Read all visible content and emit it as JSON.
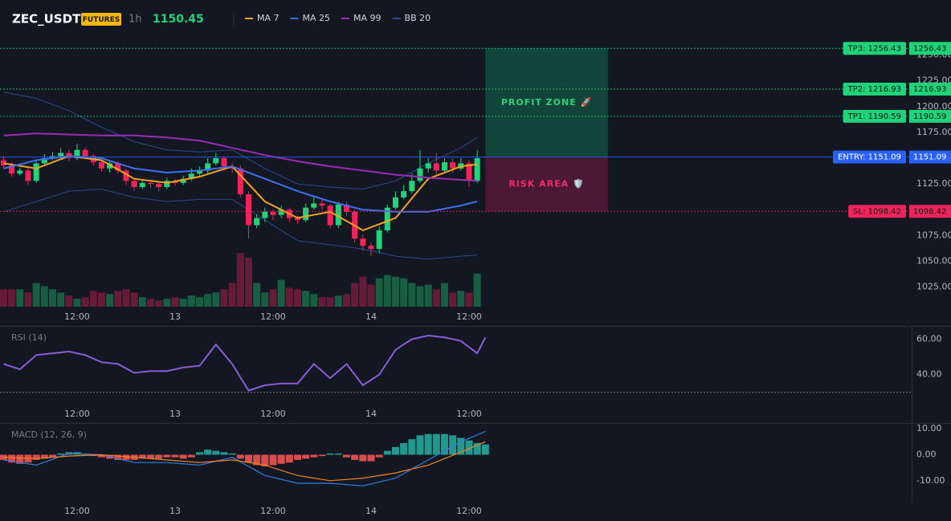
{
  "header": {
    "symbol": "ZEC_USDT",
    "badge": "FUTURES",
    "interval": "1h",
    "price": 1150.45
  },
  "chart_data": [
    {
      "type": "candlestick",
      "x": [
        0,
        1,
        2,
        3,
        4,
        5,
        6,
        7,
        8,
        9,
        10,
        11,
        12,
        13,
        14,
        15,
        16,
        17,
        18,
        19,
        20,
        21,
        22,
        23,
        24,
        25,
        26,
        27,
        28,
        29,
        30,
        31,
        32,
        33,
        34,
        35,
        36,
        37,
        38,
        39,
        40,
        41,
        42,
        43,
        44,
        45,
        46,
        47,
        48,
        49,
        50,
        51,
        52,
        53,
        54,
        55,
        56,
        57,
        58
      ],
      "open": [
        1148,
        1143,
        1135,
        1138,
        1128,
        1145,
        1150,
        1152,
        1155,
        1150,
        1158,
        1152,
        1146,
        1140,
        1145,
        1138,
        1128,
        1122,
        1126,
        1125,
        1122,
        1128,
        1126,
        1130,
        1135,
        1138,
        1145,
        1150,
        1142,
        1140,
        1115,
        1085,
        1092,
        1098,
        1095,
        1100,
        1092,
        1090,
        1102,
        1106,
        1104,
        1085,
        1105,
        1098,
        1072,
        1065,
        1062,
        1080,
        1102,
        1112,
        1118,
        1128,
        1140,
        1145,
        1138,
        1146,
        1140,
        1145,
        1128
      ],
      "high": [
        1152,
        1146,
        1141,
        1140,
        1148,
        1154,
        1156,
        1160,
        1158,
        1164,
        1160,
        1154,
        1148,
        1148,
        1147,
        1140,
        1130,
        1129,
        1129,
        1127,
        1131,
        1130,
        1133,
        1140,
        1142,
        1150,
        1155,
        1152,
        1145,
        1143,
        1118,
        1096,
        1102,
        1100,
        1104,
        1102,
        1094,
        1106,
        1112,
        1110,
        1106,
        1108,
        1108,
        1100,
        1076,
        1068,
        1084,
        1105,
        1118,
        1124,
        1135,
        1158,
        1150,
        1155,
        1150,
        1150,
        1150,
        1148,
        1158
      ],
      "low": [
        1140,
        1132,
        1133,
        1124,
        1126,
        1143,
        1148,
        1150,
        1147,
        1148,
        1149,
        1143,
        1137,
        1136,
        1135,
        1124,
        1118,
        1120,
        1121,
        1118,
        1120,
        1123,
        1124,
        1128,
        1133,
        1135,
        1143,
        1138,
        1136,
        1112,
        1072,
        1082,
        1088,
        1090,
        1092,
        1088,
        1086,
        1088,
        1100,
        1100,
        1082,
        1082,
        1094,
        1068,
        1060,
        1055,
        1058,
        1078,
        1100,
        1110,
        1116,
        1126,
        1136,
        1134,
        1136,
        1136,
        1138,
        1122,
        1126
      ],
      "close": [
        1143,
        1135,
        1138,
        1128,
        1145,
        1150,
        1152,
        1155,
        1150,
        1158,
        1152,
        1146,
        1140,
        1145,
        1138,
        1128,
        1122,
        1126,
        1125,
        1122,
        1128,
        1126,
        1130,
        1135,
        1138,
        1145,
        1150,
        1142,
        1140,
        1115,
        1085,
        1092,
        1098,
        1095,
        1100,
        1092,
        1090,
        1102,
        1106,
        1104,
        1085,
        1105,
        1098,
        1072,
        1065,
        1062,
        1080,
        1102,
        1112,
        1118,
        1128,
        1140,
        1145,
        1138,
        1146,
        1140,
        1145,
        1128,
        1150
      ],
      "volume": [
        22,
        22,
        22,
        18,
        30,
        26,
        22,
        18,
        14,
        10,
        12,
        20,
        18,
        16,
        20,
        22,
        18,
        12,
        10,
        8,
        10,
        12,
        10,
        14,
        12,
        16,
        18,
        22,
        30,
        68,
        62,
        30,
        18,
        22,
        34,
        24,
        22,
        20,
        16,
        12,
        12,
        14,
        16,
        30,
        38,
        28,
        36,
        40,
        38,
        36,
        30,
        26,
        28,
        22,
        30,
        18,
        20,
        18,
        42
      ],
      "up_color": "#22d37a",
      "down_color": "#f0245a",
      "series": [
        {
          "name": "MA 7",
          "color": "#f7a21b",
          "x": [
            0,
            4,
            8,
            12,
            16,
            20,
            24,
            28,
            32,
            36,
            40,
            44,
            48,
            52,
            56,
            58
          ],
          "values": [
            1145,
            1140,
            1152,
            1148,
            1130,
            1126,
            1132,
            1142,
            1108,
            1092,
            1098,
            1080,
            1092,
            1130,
            1142,
            1144
          ]
        },
        {
          "name": "MA 25",
          "color": "#3d6ff0",
          "x": [
            0,
            4,
            8,
            12,
            16,
            20,
            24,
            28,
            32,
            36,
            40,
            44,
            48,
            52,
            56,
            58
          ],
          "values": [
            1140,
            1148,
            1152,
            1150,
            1140,
            1136,
            1138,
            1142,
            1130,
            1118,
            1108,
            1100,
            1098,
            1098,
            1104,
            1108
          ]
        },
        {
          "name": "MA 99",
          "color": "#9c2bb5",
          "x": [
            0,
            4,
            8,
            12,
            16,
            20,
            24,
            28,
            32,
            36,
            40,
            44,
            48,
            52,
            56,
            58
          ],
          "values": [
            1172,
            1174,
            1173,
            1172,
            1172,
            1170,
            1167,
            1160,
            1153,
            1147,
            1142,
            1138,
            1134,
            1131,
            1129,
            1128
          ]
        },
        {
          "name": "BB 20",
          "color": "#2a4a8f",
          "x": [
            0,
            4,
            8,
            12,
            16,
            20,
            24,
            28,
            32,
            36,
            40,
            44,
            48,
            52,
            56,
            58
          ],
          "values": [
            1214,
            1208,
            1196,
            1180,
            1166,
            1158,
            1156,
            1158,
            1140,
            1125,
            1122,
            1120,
            1128,
            1145,
            1160,
            1170
          ],
          "lower": [
            1098,
            1108,
            1118,
            1120,
            1112,
            1108,
            1110,
            1110,
            1090,
            1070,
            1066,
            1062,
            1055,
            1052,
            1055,
            1056
          ]
        }
      ],
      "xlim": [
        -0.44,
        111.2
      ],
      "xticks": [
        {
          "value": 9,
          "label": "12:00"
        },
        {
          "value": 21,
          "label": "13"
        },
        {
          "value": 33,
          "label": "12:00"
        },
        {
          "value": 45,
          "label": "14"
        },
        {
          "value": 57,
          "label": "12:00"
        }
      ],
      "ylim": [
        1006,
        1266
      ],
      "yticks": [
        {
          "value": 1025,
          "label": "1025.00"
        },
        {
          "value": 1050,
          "label": "1050.00"
        },
        {
          "value": 1075,
          "label": "1075.00"
        },
        {
          "value": 1100,
          "label": "1100.00"
        },
        {
          "value": 1125,
          "label": "1125.00"
        },
        {
          "value": 1150,
          "label": "1150.00"
        },
        {
          "value": 1175,
          "label": "1175.00"
        },
        {
          "value": 1200,
          "label": "1200.00"
        },
        {
          "value": 1225,
          "label": "1225.00"
        },
        {
          "value": 1250,
          "label": "1250.00"
        }
      ],
      "levels": [
        {
          "label": "TP3: 1256.43",
          "value": 1256.43,
          "value_label": "1256.43",
          "color": "#1fd37a",
          "style": "dotted"
        },
        {
          "label": "TP2: 1216.93",
          "value": 1216.93,
          "value_label": "1216.93",
          "color": "#1fd37a",
          "style": "dotted"
        },
        {
          "label": "TP1: 1190.59",
          "value": 1190.59,
          "value_label": "1190.59",
          "color": "#1fd37a",
          "style": "dotted"
        },
        {
          "label": "ENTRY: 1151.09",
          "value": 1151.09,
          "value_label": "1151.09",
          "color": "#2962ff",
          "style": "solid"
        },
        {
          "label": "SL: 1098.42",
          "value": 1098.42,
          "value_label": "1098.42",
          "color": "#f0245a",
          "style": "dotted"
        }
      ],
      "zones": [
        {
          "label": "PROFIT ZONE 🚀",
          "x": [
            59,
            74
          ],
          "from": 1151.09,
          "to": 1256.43,
          "color": "#12a86a",
          "text_color": "#2fd07f"
        },
        {
          "label": "RISK AREA 🛡️",
          "x": [
            59,
            74
          ],
          "from": 1098.42,
          "to": 1151.09,
          "color": "#c0185a",
          "text_color": "#ef2d6a"
        }
      ]
    },
    {
      "type": "line",
      "title": "RSI (14)",
      "series": [
        {
          "color": "#8a5cd6",
          "x": [
            0,
            2,
            4,
            6,
            8,
            10,
            12,
            14,
            16,
            18,
            20,
            22,
            24,
            26,
            28,
            30,
            32,
            34,
            36,
            38,
            40,
            42,
            44,
            46,
            48,
            50,
            52,
            54,
            56,
            58,
            59
          ],
          "values": [
            46,
            43,
            51,
            52,
            53,
            51,
            47,
            46,
            41,
            42,
            42,
            44,
            45,
            57,
            46,
            31,
            34,
            35,
            35,
            46,
            38,
            46,
            34,
            40,
            54,
            60,
            62,
            61,
            59,
            52,
            61
          ]
        }
      ],
      "reference_lines": [
        30
      ],
      "xlim": [
        -0.44,
        111.2
      ],
      "xticks": [
        {
          "value": 9,
          "label": "12:00"
        },
        {
          "value": 21,
          "label": "13"
        },
        {
          "value": 33,
          "label": "12:00"
        },
        {
          "value": 45,
          "label": "14"
        },
        {
          "value": 57,
          "label": "12:00"
        }
      ],
      "ylim": [
        24,
        67
      ],
      "yticks": [
        {
          "value": 40,
          "label": "40.00"
        },
        {
          "value": 60,
          "label": "60.00"
        }
      ]
    },
    {
      "type": "macd",
      "title": "MACD (12, 26, 9)",
      "x": [
        0,
        1,
        2,
        3,
        4,
        5,
        6,
        7,
        8,
        9,
        10,
        11,
        12,
        13,
        14,
        15,
        16,
        17,
        18,
        19,
        20,
        21,
        22,
        23,
        24,
        25,
        26,
        27,
        28,
        29,
        30,
        31,
        32,
        33,
        34,
        35,
        36,
        37,
        38,
        39,
        40,
        41,
        42,
        43,
        44,
        45,
        46,
        47,
        48,
        49,
        50,
        51,
        52,
        53,
        54,
        55,
        56,
        57,
        58,
        59
      ],
      "histogram": [
        -2,
        -3,
        -3.5,
        -3,
        -2,
        -1.5,
        -1,
        0.5,
        1,
        1,
        0.5,
        -0.5,
        -1,
        -1.5,
        -2,
        -2,
        -2,
        -1.5,
        -1.5,
        -1.5,
        -1,
        -1,
        -1.5,
        -1,
        1,
        2,
        1.5,
        1,
        0.5,
        -1.5,
        -3,
        -4,
        -4.5,
        -4,
        -3.5,
        -3,
        -2,
        -1.5,
        -1,
        -0.5,
        0.5,
        0.5,
        -1,
        -2,
        -2.5,
        -2.5,
        -1,
        1.5,
        3,
        4.5,
        6,
        7.5,
        8,
        8,
        8,
        7.5,
        6.5,
        5.5,
        4.5,
        4
      ],
      "up_color": "#26a69a",
      "down_color": "#ef5350",
      "series": [
        {
          "color": "#2f7de1",
          "x": [
            0,
            4,
            8,
            12,
            16,
            20,
            24,
            28,
            32,
            36,
            40,
            44,
            48,
            52,
            56,
            59
          ],
          "values": [
            -2,
            -4,
            0.5,
            0,
            -3,
            -3,
            -4,
            -1,
            -8,
            -11,
            -11,
            -12,
            -9,
            -2,
            5,
            9
          ]
        },
        {
          "color": "#f0851c",
          "x": [
            0,
            4,
            8,
            12,
            16,
            20,
            24,
            28,
            32,
            36,
            40,
            44,
            48,
            52,
            56,
            59
          ],
          "values": [
            -1,
            -1.5,
            -0.5,
            0,
            -1,
            -2,
            -3,
            -2,
            -4,
            -8,
            -10,
            -9,
            -7,
            -4,
            1,
            5
          ]
        }
      ],
      "xlim": [
        -0.44,
        111.2
      ],
      "xticks": [
        {
          "value": 9,
          "label": "12:00"
        },
        {
          "value": 21,
          "label": "13"
        },
        {
          "value": 33,
          "label": "12:00"
        },
        {
          "value": 45,
          "label": "14"
        },
        {
          "value": 57,
          "label": "12:00"
        }
      ],
      "ylim": [
        -18.1,
        11.9
      ],
      "yticks": [
        {
          "value": -10,
          "label": "-10.00"
        },
        {
          "value": 0,
          "label": "0.00"
        },
        {
          "value": 10,
          "label": "10.00"
        }
      ]
    }
  ]
}
